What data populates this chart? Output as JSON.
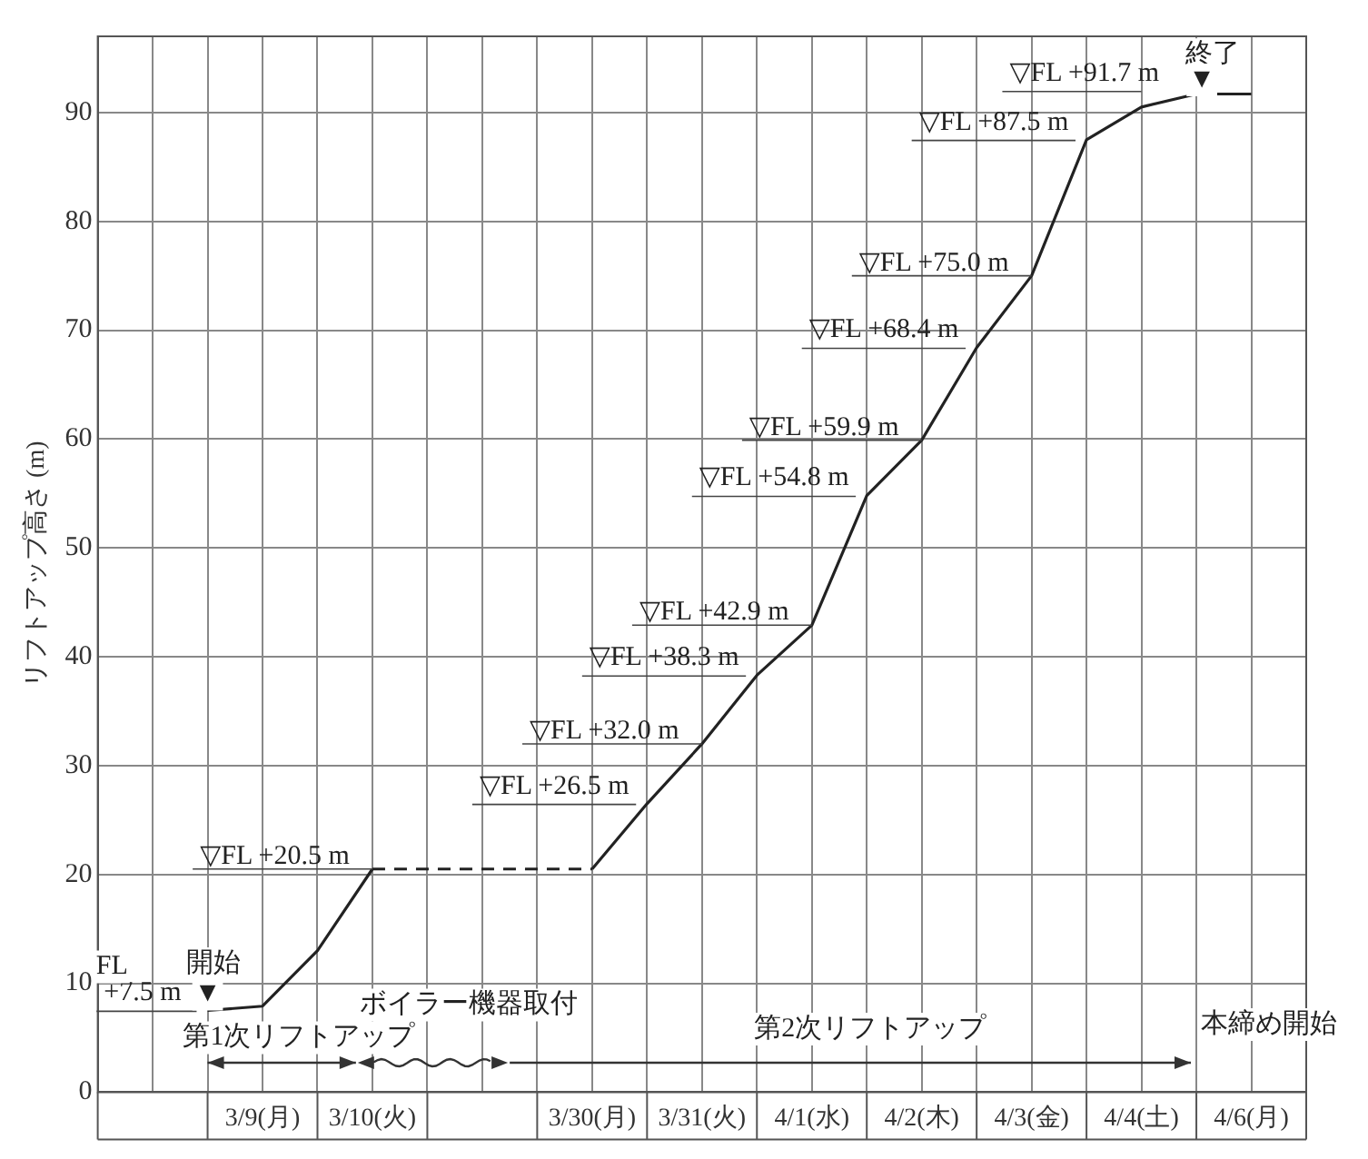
{
  "chart_data": {
    "type": "line",
    "ylabel": "リフトアップ高さ (m)",
    "categories": [
      null,
      null,
      null,
      "3/9(月)",
      null,
      "3/10(火)",
      null,
      null,
      null,
      "3/30(月)",
      null,
      "3/31(火)",
      null,
      "4/1(水)",
      null,
      "4/2(木)",
      null,
      "4/3(金)",
      null,
      "4/4(土)",
      null,
      "4/6(月)",
      null
    ],
    "ylim": [
      0,
      97
    ],
    "yticks": [
      0,
      10,
      20,
      30,
      40,
      50,
      60,
      70,
      80,
      90
    ],
    "grid": true,
    "legend": false,
    "marker": "none",
    "series": [
      {
        "color": "#222222",
        "line_style": "solid",
        "values": [
          null,
          null,
          7.5,
          7.9,
          13.0,
          20.5,
          null,
          null,
          null,
          null,
          null,
          null,
          null,
          null,
          null,
          null,
          null,
          null,
          null,
          null,
          null,
          null,
          null
        ]
      },
      {
        "color": "#222222",
        "line_style": "dashed",
        "values": [
          null,
          null,
          null,
          null,
          null,
          20.5,
          20.5,
          20.5,
          20.5,
          20.5,
          null,
          null,
          null,
          null,
          null,
          null,
          null,
          null,
          null,
          null,
          null,
          null,
          null
        ]
      },
      {
        "color": "#222222",
        "line_style": "solid",
        "values": [
          null,
          null,
          null,
          null,
          null,
          null,
          null,
          null,
          null,
          20.5,
          26.5,
          32.0,
          38.3,
          42.9,
          54.8,
          59.9,
          68.4,
          75.0,
          87.5,
          90.5,
          91.7,
          91.7,
          null
        ]
      }
    ],
    "annotations": [
      {
        "text": "▽FL +20.5 m",
        "x": "3/10(火)",
        "y": 20.5
      },
      {
        "text": "▽FL +32.0 m",
        "x": "3/31(火)",
        "y": 32.0
      },
      {
        "text": "▽FL +42.9 m",
        "x": "4/1(水)",
        "y": 42.9
      },
      {
        "text": "▽FL +59.9 m",
        "x": "4/2(木)",
        "y": 59.9
      },
      {
        "text": "▽FL +75.0 m",
        "x": "4/3(金)",
        "y": 75.0
      },
      "▽FL +26.5 m",
      "▽FL +38.3 m",
      "▽FL +54.8 m",
      "▽FL +68.4 m",
      "▽FL +87.5 m",
      "▽FL +91.7 m",
      "+7.5 m",
      "FL",
      "開始",
      "▼",
      "終了",
      "▼",
      "ボイラー機器取付",
      "第1次リフトアップ",
      "第2次リフトアップ",
      "本締め開始"
    ]
  }
}
